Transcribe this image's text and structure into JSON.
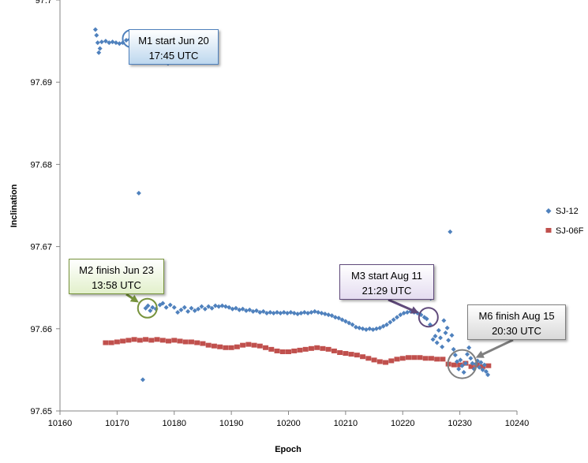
{
  "chart_data": {
    "type": "scatter",
    "title": "",
    "xlabel": "Epoch",
    "ylabel": "Inclination",
    "xlim": [
      10160,
      10240
    ],
    "ylim": [
      97.65,
      97.7
    ],
    "xticks": [
      "10160",
      "10170",
      "10180",
      "10190",
      "10200",
      "10210",
      "10220",
      "10230",
      "10240"
    ],
    "yticks": [
      "97.65",
      "97.66",
      "97.67",
      "97.68",
      "97.69",
      "97.7"
    ],
    "grid": false,
    "legend_position": "right",
    "series": [
      {
        "name": "SJ-12",
        "color": "#4f81bd",
        "marker": "diamond",
        "points": [
          [
            10165.8,
            97.7043
          ],
          [
            10165.9,
            97.7015
          ],
          [
            10166.2,
            97.6964
          ],
          [
            10166.4,
            97.6957
          ],
          [
            10166.6,
            97.6948
          ],
          [
            10166.8,
            97.6936
          ],
          [
            10167.0,
            97.6941
          ],
          [
            10167.3,
            97.6949
          ],
          [
            10168.0,
            97.695
          ],
          [
            10168.6,
            97.6948
          ],
          [
            10169.2,
            97.6949
          ],
          [
            10169.8,
            97.6948
          ],
          [
            10170.4,
            97.6947
          ],
          [
            10171.0,
            97.6948
          ],
          [
            10171.6,
            97.6951
          ],
          [
            10172.2,
            97.6952
          ],
          [
            10172.6,
            97.6953
          ],
          [
            10173.8,
            97.6765
          ],
          [
            10174.5,
            97.6538
          ],
          [
            10175.0,
            97.6625
          ],
          [
            10175.4,
            97.6628
          ],
          [
            10175.8,
            97.6622
          ],
          [
            10176.2,
            97.6626
          ],
          [
            10176.8,
            97.6624
          ],
          [
            10177.5,
            97.6629
          ],
          [
            10178.0,
            97.6631
          ],
          [
            10178.6,
            97.6626
          ],
          [
            10179.3,
            97.6629
          ],
          [
            10180.0,
            97.6626
          ],
          [
            10180.6,
            97.662
          ],
          [
            10181.2,
            97.6623
          ],
          [
            10181.8,
            97.6626
          ],
          [
            10182.4,
            97.6621
          ],
          [
            10183.0,
            97.6625
          ],
          [
            10183.6,
            97.6622
          ],
          [
            10184.2,
            97.6624
          ],
          [
            10184.8,
            97.6627
          ],
          [
            10185.4,
            97.6624
          ],
          [
            10186.0,
            97.6627
          ],
          [
            10186.6,
            97.6625
          ],
          [
            10187.2,
            97.6628
          ],
          [
            10187.8,
            97.6627
          ],
          [
            10188.4,
            97.6628
          ],
          [
            10189.0,
            97.6627
          ],
          [
            10189.6,
            97.6626
          ],
          [
            10190.2,
            97.6624
          ],
          [
            10190.8,
            97.6625
          ],
          [
            10191.4,
            97.6623
          ],
          [
            10192.0,
            97.6624
          ],
          [
            10192.6,
            97.6622
          ],
          [
            10193.2,
            97.6623
          ],
          [
            10193.8,
            97.6621
          ],
          [
            10194.4,
            97.6622
          ],
          [
            10195.0,
            97.662
          ],
          [
            10195.6,
            97.6621
          ],
          [
            10196.2,
            97.6619
          ],
          [
            10196.8,
            97.662
          ],
          [
            10197.4,
            97.6619
          ],
          [
            10198.0,
            97.662
          ],
          [
            10198.6,
            97.6619
          ],
          [
            10199.2,
            97.662
          ],
          [
            10199.8,
            97.6619
          ],
          [
            10200.4,
            97.662
          ],
          [
            10201.0,
            97.6619
          ],
          [
            10201.6,
            97.6618
          ],
          [
            10202.2,
            97.6619
          ],
          [
            10202.8,
            97.662
          ],
          [
            10203.4,
            97.6619
          ],
          [
            10204.0,
            97.662
          ],
          [
            10204.6,
            97.6621
          ],
          [
            10205.2,
            97.662
          ],
          [
            10205.8,
            97.6619
          ],
          [
            10206.4,
            97.6618
          ],
          [
            10207.0,
            97.6617
          ],
          [
            10207.6,
            97.6616
          ],
          [
            10208.2,
            97.6614
          ],
          [
            10208.8,
            97.6613
          ],
          [
            10209.4,
            97.6611
          ],
          [
            10210.0,
            97.6609
          ],
          [
            10210.6,
            97.6607
          ],
          [
            10211.2,
            97.6605
          ],
          [
            10211.8,
            97.6602
          ],
          [
            10212.4,
            97.6601
          ],
          [
            10213.0,
            97.66
          ],
          [
            10213.6,
            97.6599
          ],
          [
            10214.2,
            97.66
          ],
          [
            10214.8,
            97.6599
          ],
          [
            10215.4,
            97.66
          ],
          [
            10216.0,
            97.6601
          ],
          [
            10216.6,
            97.6603
          ],
          [
            10217.2,
            97.6605
          ],
          [
            10217.8,
            97.6608
          ],
          [
            10218.4,
            97.6611
          ],
          [
            10219.0,
            97.6614
          ],
          [
            10219.6,
            97.6617
          ],
          [
            10220.2,
            97.6619
          ],
          [
            10220.8,
            97.662
          ],
          [
            10221.4,
            97.6621
          ],
          [
            10222.0,
            97.662
          ],
          [
            10222.6,
            97.6619
          ],
          [
            10223.2,
            97.6617
          ],
          [
            10223.8,
            97.6614
          ],
          [
            10224.2,
            97.6612
          ],
          [
            10224.8,
            97.6605
          ],
          [
            10224.9,
            97.6637
          ],
          [
            10225.3,
            97.6587
          ],
          [
            10225.7,
            97.6591
          ],
          [
            10226.0,
            97.6583
          ],
          [
            10226.3,
            97.6598
          ],
          [
            10226.6,
            97.6589
          ],
          [
            10226.9,
            97.6578
          ],
          [
            10227.2,
            97.661
          ],
          [
            10227.5,
            97.6595
          ],
          [
            10227.8,
            97.6601
          ],
          [
            10228.0,
            97.6586
          ],
          [
            10228.3,
            97.6718
          ],
          [
            10228.6,
            97.6592
          ],
          [
            10228.9,
            97.6575
          ],
          [
            10229.2,
            97.6568
          ],
          [
            10229.5,
            97.656
          ],
          [
            10229.8,
            97.6551
          ],
          [
            10230.1,
            97.6562
          ],
          [
            10230.4,
            97.6555
          ],
          [
            10230.7,
            97.6547
          ],
          [
            10231.0,
            97.6558
          ],
          [
            10231.3,
            97.6569
          ],
          [
            10231.6,
            97.6577
          ],
          [
            10231.9,
            97.6564
          ],
          [
            10232.2,
            97.6558
          ],
          [
            10232.5,
            97.6551
          ],
          [
            10232.8,
            97.6557
          ],
          [
            10233.1,
            97.6561
          ],
          [
            10233.4,
            97.6553
          ],
          [
            10233.7,
            97.6559
          ],
          [
            10234.0,
            97.655
          ],
          [
            10234.3,
            97.6556
          ],
          [
            10234.6,
            97.6548
          ],
          [
            10234.9,
            97.6544
          ]
        ]
      },
      {
        "name": "SJ-06F",
        "color": "#c0504d",
        "marker": "square",
        "points": [
          [
            10168.0,
            97.6583
          ],
          [
            10169.0,
            97.6583
          ],
          [
            10170.0,
            97.6584
          ],
          [
            10171.0,
            97.6585
          ],
          [
            10172.0,
            97.6586
          ],
          [
            10173.0,
            97.6587
          ],
          [
            10174.0,
            97.6586
          ],
          [
            10175.0,
            97.6587
          ],
          [
            10176.0,
            97.6586
          ],
          [
            10177.0,
            97.6587
          ],
          [
            10178.0,
            97.6586
          ],
          [
            10179.0,
            97.6585
          ],
          [
            10180.0,
            97.6586
          ],
          [
            10181.0,
            97.6585
          ],
          [
            10182.0,
            97.6584
          ],
          [
            10183.0,
            97.6584
          ],
          [
            10184.0,
            97.6583
          ],
          [
            10185.0,
            97.6582
          ],
          [
            10186.0,
            97.658
          ],
          [
            10187.0,
            97.6579
          ],
          [
            10188.0,
            97.6578
          ],
          [
            10189.0,
            97.6577
          ],
          [
            10190.0,
            97.6577
          ],
          [
            10191.0,
            97.6578
          ],
          [
            10192.0,
            97.658
          ],
          [
            10193.0,
            97.6581
          ],
          [
            10194.0,
            97.658
          ],
          [
            10195.0,
            97.6579
          ],
          [
            10196.0,
            97.6577
          ],
          [
            10197.0,
            97.6575
          ],
          [
            10198.0,
            97.6573
          ],
          [
            10199.0,
            97.6572
          ],
          [
            10200.0,
            97.6572
          ],
          [
            10201.0,
            97.6573
          ],
          [
            10202.0,
            97.6574
          ],
          [
            10203.0,
            97.6575
          ],
          [
            10204.0,
            97.6576
          ],
          [
            10205.0,
            97.6577
          ],
          [
            10206.0,
            97.6576
          ],
          [
            10207.0,
            97.6575
          ],
          [
            10208.0,
            97.6573
          ],
          [
            10209.0,
            97.6571
          ],
          [
            10210.0,
            97.657
          ],
          [
            10211.0,
            97.6569
          ],
          [
            10212.0,
            97.6568
          ],
          [
            10213.0,
            97.6566
          ],
          [
            10214.0,
            97.6564
          ],
          [
            10215.0,
            97.6562
          ],
          [
            10216.0,
            97.656
          ],
          [
            10217.0,
            97.6559
          ],
          [
            10218.0,
            97.6561
          ],
          [
            10219.0,
            97.6563
          ],
          [
            10220.0,
            97.6564
          ],
          [
            10221.0,
            97.6565
          ],
          [
            10222.0,
            97.6565
          ],
          [
            10223.0,
            97.6565
          ],
          [
            10224.0,
            97.6564
          ],
          [
            10225.0,
            97.6564
          ],
          [
            10226.0,
            97.6563
          ],
          [
            10227.0,
            97.6563
          ],
          [
            10228.0,
            97.6557
          ],
          [
            10229.0,
            97.6556
          ],
          [
            10230.0,
            97.6556
          ],
          [
            10231.0,
            97.6558
          ],
          [
            10232.0,
            97.6554
          ],
          [
            10233.0,
            97.6556
          ],
          [
            10234.0,
            97.6554
          ],
          [
            10235.0,
            97.6555
          ]
        ]
      }
    ],
    "annotations": [
      {
        "id": "m1",
        "lines": [
          "M1 start Jun 20",
          "17:45 UTC"
        ],
        "target": [
          10172.5,
          97.6953
        ],
        "circle_color": "#4f81bd",
        "box_color": "#bdd7ee",
        "arrow_color": "#4f81bd"
      },
      {
        "id": "m2",
        "lines": [
          "M2 finish Jun 23",
          "13:58 UTC"
        ],
        "target": [
          10175.3,
          97.6625
        ],
        "circle_color": "#77933c",
        "box_color": "#e2f0cb",
        "arrow_color": "#77933c"
      },
      {
        "id": "m3",
        "lines": [
          "M3 start Aug 11",
          "21:29 UTC"
        ],
        "target": [
          10224.5,
          97.6614
        ],
        "circle_color": "#604a7b",
        "box_color": "#e4dcf0",
        "arrow_color": "#604a7b"
      },
      {
        "id": "m6",
        "lines": [
          "M6 finish Aug 15",
          "20:30 UTC"
        ],
        "target": [
          10230.4,
          97.6557
        ],
        "circle_color": "#7f7f7f",
        "box_color": "#d9d9d9",
        "arrow_color": "#7f7f7f"
      }
    ]
  }
}
